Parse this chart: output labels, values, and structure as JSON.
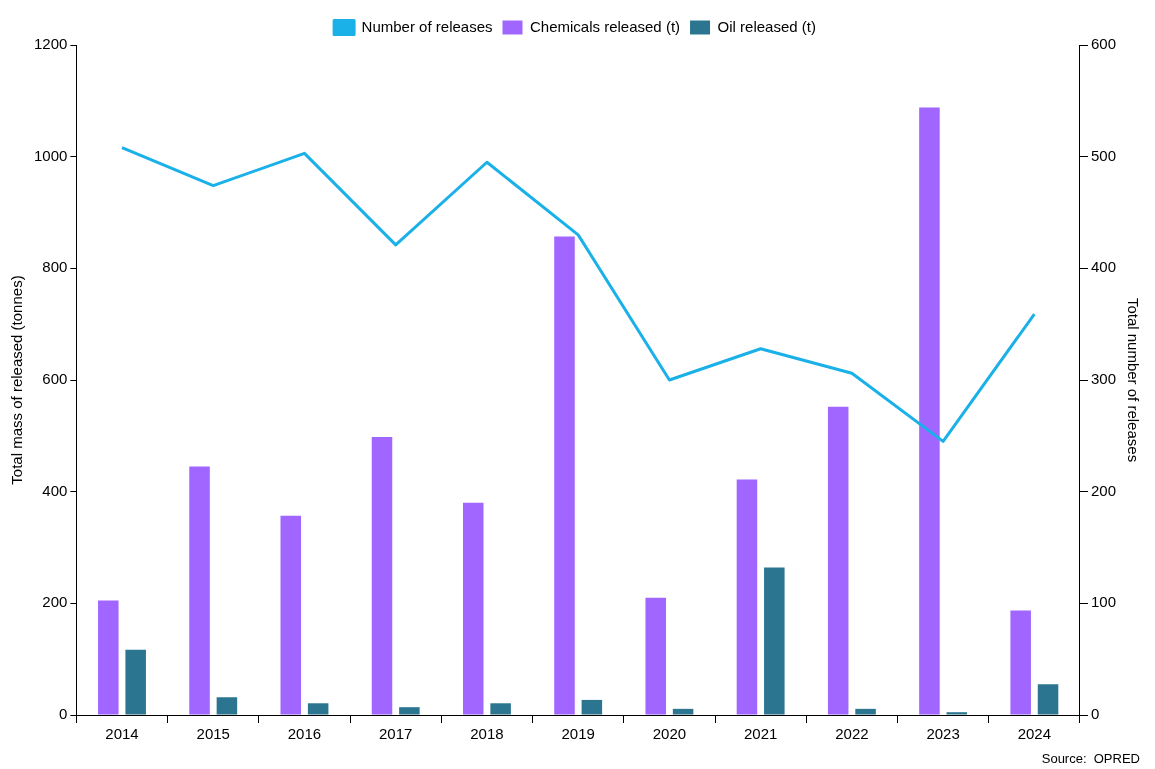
{
  "chart_data": {
    "type": "bar",
    "categories": [
      "2014",
      "2015",
      "2016",
      "2017",
      "2018",
      "2019",
      "2020",
      "2021",
      "2022",
      "2023",
      "2024"
    ],
    "ylabel": "Total mass of released (tonnes)",
    "y2label": "Total number of releases",
    "series": [
      {
        "name": "Chemicals released (t)",
        "color": "#a066ff",
        "values": [
          205,
          445,
          357,
          498,
          380,
          857,
          210,
          422,
          552,
          1088,
          187
        ]
      },
      {
        "name": "Oil released (t)",
        "color": "#2b7590",
        "values": [
          117,
          32,
          21,
          14,
          21,
          27,
          11,
          264,
          11,
          5,
          55
        ]
      },
      {
        "name": "Number of releases",
        "type": "line",
        "axis": "y2",
        "color": "#1ab0e8",
        "values": [
          508,
          474,
          503,
          421,
          495,
          430,
          300,
          328,
          306,
          245,
          359
        ]
      }
    ],
    "ylim": [
      0,
      1200
    ],
    "yticks": [
      0,
      200,
      400,
      600,
      800,
      1000,
      1200
    ],
    "y2lim": [
      0,
      600
    ],
    "y2ticks": [
      0,
      100,
      200,
      300,
      400,
      500,
      600
    ],
    "grid": false,
    "legend": "top",
    "marker": "none",
    "line_style": "solid",
    "annotations": [
      "Source:  OPRED"
    ]
  }
}
